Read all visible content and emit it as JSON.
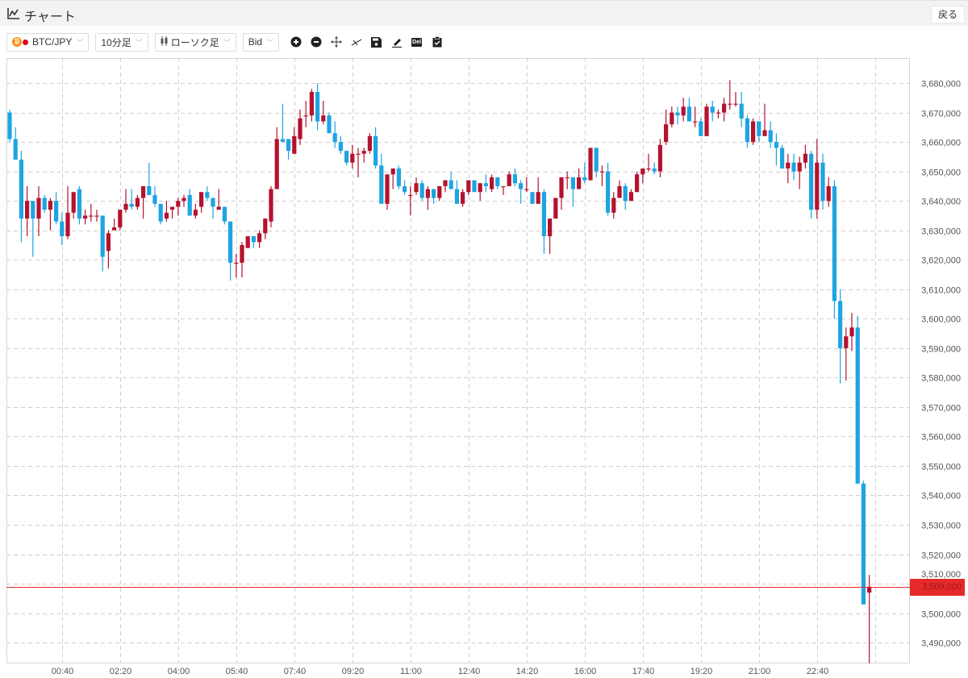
{
  "header": {
    "title": "チャート",
    "back_label": "戻る",
    "icon": "line-chart-icon"
  },
  "toolbar": {
    "pair": {
      "label": "BTC/JPY",
      "icons": [
        "bitcoin-icon",
        "jpy-flag-icon"
      ]
    },
    "interval": "10分足",
    "chart_type": "ローソク足",
    "price_side": "Bid",
    "tools": [
      "zoom-in-icon",
      "zoom-out-icon",
      "move-icon",
      "trendline-icon",
      "save-icon",
      "draw-icon",
      "delete-icon",
      "clipboard-icon"
    ],
    "delete_label": "Del"
  },
  "colors": {
    "up": "#b5122e",
    "down": "#1ea4e2",
    "current_price": "#e52a2a",
    "grid": "#cfcfcf"
  },
  "chart_data": {
    "type": "candlestick",
    "fields": [
      "open",
      "high",
      "low",
      "close"
    ],
    "ylim": [
      3483200,
      3688500
    ],
    "grid": true,
    "current_price": 3509000,
    "current_price_label": "3,509,000",
    "x_tick_labels": [
      "00:40",
      "02:20",
      "04:00",
      "05:40",
      "07:40",
      "09:20",
      "11:00",
      "12:40",
      "14:20",
      "16:00",
      "17:40",
      "19:20",
      "21:00",
      "22:40"
    ],
    "y_tick_labels": [
      "3,680,000",
      "3,670,000",
      "3,660,000",
      "3,650,000",
      "3,640,000",
      "3,630,000",
      "3,620,000",
      "3,610,000",
      "3,600,000",
      "3,590,000",
      "3,580,000",
      "3,570,000",
      "3,560,000",
      "3,550,000",
      "3,540,000",
      "3,530,000",
      "3,520,000",
      "3,510,000",
      "3,500,000",
      "3,490,000"
    ],
    "y_tick_values": [
      3680000,
      3670000,
      3660000,
      3650000,
      3640000,
      3630000,
      3620000,
      3610000,
      3600000,
      3590000,
      3580000,
      3570000,
      3560000,
      3550000,
      3540000,
      3530000,
      3520000,
      3510000,
      3500000,
      3490000
    ],
    "candles": [
      [
        3670000,
        3671000,
        3660000,
        3661000
      ],
      [
        3661000,
        3665000,
        3654000,
        3654000
      ],
      [
        3654000,
        3657000,
        3626000,
        3634000
      ],
      [
        3634000,
        3645000,
        3628000,
        3640000
      ],
      [
        3640000,
        3640000,
        3621000,
        3634000
      ],
      [
        3634000,
        3645000,
        3628000,
        3641000
      ],
      [
        3641000,
        3642000,
        3636000,
        3637000
      ],
      [
        3637000,
        3641000,
        3630000,
        3640000
      ],
      [
        3640000,
        3643000,
        3632000,
        3633000
      ],
      [
        3633000,
        3636000,
        3625000,
        3628000
      ],
      [
        3628000,
        3645000,
        3627000,
        3636000
      ],
      [
        3636000,
        3643000,
        3634000,
        3643000
      ],
      [
        3644000,
        3645000,
        3632000,
        3634000
      ],
      [
        3634000,
        3637000,
        3632000,
        3635000
      ],
      [
        3635000,
        3639000,
        3633000,
        3635000
      ],
      [
        3635000,
        3637000,
        3633000,
        3635000
      ],
      [
        3635000,
        3635000,
        3616000,
        3621000
      ],
      [
        3623000,
        3630000,
        3617000,
        3629000
      ],
      [
        3630000,
        3634000,
        3630000,
        3631000
      ],
      [
        3631000,
        3637000,
        3630000,
        3637000
      ],
      [
        3637000,
        3644000,
        3636000,
        3639000
      ],
      [
        3639000,
        3644000,
        3637000,
        3638000
      ],
      [
        3638000,
        3642000,
        3637000,
        3641000
      ],
      [
        3641000,
        3645000,
        3634000,
        3645000
      ],
      [
        3645000,
        3653000,
        3642000,
        3642000
      ],
      [
        3642000,
        3645000,
        3638000,
        3639000
      ],
      [
        3639000,
        3639000,
        3632000,
        3633000
      ],
      [
        3634000,
        3640000,
        3633000,
        3636000
      ],
      [
        3637000,
        3638000,
        3634000,
        3638000
      ],
      [
        3638000,
        3641000,
        3635000,
        3640000
      ],
      [
        3640000,
        3642000,
        3638000,
        3641000
      ],
      [
        3642000,
        3644000,
        3635000,
        3635000
      ],
      [
        3635000,
        3639000,
        3634000,
        3637000
      ],
      [
        3638000,
        3643000,
        3636000,
        3643000
      ],
      [
        3643000,
        3645000,
        3640000,
        3641000
      ],
      [
        3641000,
        3641000,
        3634000,
        3638000
      ],
      [
        3637000,
        3644000,
        3637000,
        3638000
      ],
      [
        3638000,
        3638000,
        3632000,
        3633000
      ],
      [
        3633000,
        3633000,
        3613000,
        3619000
      ],
      [
        3619000,
        3622000,
        3614000,
        3619000
      ],
      [
        3619000,
        3626000,
        3614000,
        3625000
      ],
      [
        3624000,
        3628000,
        3624000,
        3628000
      ],
      [
        3628000,
        3628000,
        3624000,
        3626000
      ],
      [
        3626000,
        3630000,
        3624000,
        3629000
      ],
      [
        3629000,
        3634000,
        3627000,
        3634000
      ],
      [
        3633000,
        3645000,
        3631000,
        3644000
      ],
      [
        3644000,
        3665000,
        3644000,
        3661000
      ],
      [
        3661000,
        3673000,
        3660000,
        3660000
      ],
      [
        3661000,
        3661000,
        3654000,
        3657000
      ],
      [
        3656000,
        3665000,
        3656000,
        3662000
      ],
      [
        3661000,
        3671000,
        3659000,
        3668000
      ],
      [
        3669000,
        3674000,
        3665000,
        3669000
      ],
      [
        3669000,
        3678000,
        3667000,
        3677000
      ],
      [
        3677000,
        3680000,
        3664000,
        3667000
      ],
      [
        3667000,
        3674000,
        3666000,
        3669000
      ],
      [
        3669000,
        3670000,
        3663000,
        3663000
      ],
      [
        3663000,
        3667000,
        3658000,
        3660000
      ],
      [
        3660000,
        3662000,
        3656000,
        3657000
      ],
      [
        3657000,
        3657000,
        3652000,
        3653000
      ],
      [
        3653000,
        3659000,
        3651000,
        3656000
      ],
      [
        3656000,
        3658000,
        3648000,
        3656000
      ],
      [
        3656000,
        3658000,
        3653000,
        3657000
      ],
      [
        3657000,
        3663000,
        3656000,
        3662000
      ],
      [
        3662000,
        3665000,
        3651000,
        3652000
      ],
      [
        3652000,
        3656000,
        3639000,
        3639000
      ],
      [
        3639000,
        3649000,
        3637000,
        3649000
      ],
      [
        3649000,
        3651000,
        3644000,
        3651000
      ],
      [
        3651000,
        3652000,
        3644000,
        3645000
      ],
      [
        3645000,
        3647000,
        3642000,
        3643000
      ],
      [
        3642000,
        3645000,
        3635000,
        3642000
      ],
      [
        3643000,
        3648000,
        3642000,
        3646000
      ],
      [
        3646000,
        3647000,
        3640000,
        3641000
      ],
      [
        3641000,
        3645000,
        3637000,
        3644000
      ],
      [
        3644000,
        3644000,
        3639000,
        3641000
      ],
      [
        3641000,
        3645000,
        3640000,
        3645000
      ],
      [
        3645000,
        3647000,
        3643000,
        3647000
      ],
      [
        3647000,
        3650000,
        3644000,
        3644000
      ],
      [
        3644000,
        3647000,
        3639000,
        3639000
      ],
      [
        3639000,
        3644000,
        3638000,
        3643000
      ],
      [
        3643000,
        3647000,
        3642000,
        3647000
      ],
      [
        3647000,
        3647000,
        3643000,
        3643000
      ],
      [
        3643000,
        3646000,
        3640000,
        3646000
      ],
      [
        3646000,
        3649000,
        3643000,
        3645000
      ],
      [
        3644000,
        3649000,
        3643000,
        3648000
      ],
      [
        3648000,
        3648000,
        3644000,
        3645000
      ],
      [
        3645000,
        3645000,
        3642000,
        3645000
      ],
      [
        3645000,
        3650000,
        3645000,
        3649000
      ],
      [
        3649000,
        3651000,
        3645000,
        3646000
      ],
      [
        3646000,
        3647000,
        3639000,
        3644000
      ],
      [
        3644000,
        3648000,
        3643000,
        3644000
      ],
      [
        3643000,
        3643000,
        3639000,
        3639000
      ],
      [
        3639000,
        3648000,
        3639000,
        3643000
      ],
      [
        3643000,
        3644000,
        3622000,
        3628000
      ],
      [
        3628000,
        3634000,
        3622000,
        3634000
      ],
      [
        3634000,
        3641000,
        3634000,
        3641000
      ],
      [
        3641000,
        3648000,
        3637000,
        3648000
      ],
      [
        3648000,
        3650000,
        3644000,
        3648000
      ],
      [
        3648000,
        3648000,
        3638000,
        3644000
      ],
      [
        3644000,
        3651000,
        3644000,
        3648000
      ],
      [
        3648000,
        3653000,
        3646000,
        3647000
      ],
      [
        3647000,
        3658000,
        3647000,
        3658000
      ],
      [
        3658000,
        3658000,
        3648000,
        3650000
      ],
      [
        3650000,
        3652000,
        3645000,
        3650000
      ],
      [
        3650000,
        3653000,
        3635000,
        3636000
      ],
      [
        3636000,
        3643000,
        3634000,
        3641000
      ],
      [
        3641000,
        3647000,
        3641000,
        3645000
      ],
      [
        3645000,
        3646000,
        3637000,
        3640000
      ],
      [
        3640000,
        3644000,
        3640000,
        3643000
      ],
      [
        3643000,
        3650000,
        3643000,
        3649000
      ],
      [
        3649000,
        3651000,
        3646000,
        3651000
      ],
      [
        3651000,
        3656000,
        3650000,
        3651000
      ],
      [
        3651000,
        3653000,
        3649000,
        3650000
      ],
      [
        3650000,
        3661000,
        3648000,
        3659000
      ],
      [
        3660000,
        3671000,
        3659000,
        3666000
      ],
      [
        3666000,
        3672000,
        3665000,
        3670000
      ],
      [
        3670000,
        3672000,
        3666000,
        3669000
      ],
      [
        3669000,
        3675000,
        3667000,
        3672000
      ],
      [
        3672000,
        3675000,
        3667000,
        3667000
      ],
      [
        3667000,
        3672000,
        3665000,
        3667000
      ],
      [
        3667000,
        3668000,
        3662000,
        3662000
      ],
      [
        3662000,
        3673000,
        3662000,
        3672000
      ],
      [
        3672000,
        3674000,
        3667000,
        3670000
      ],
      [
        3670000,
        3671000,
        3668000,
        3670000
      ],
      [
        3670000,
        3675000,
        3667000,
        3673000
      ],
      [
        3673000,
        3681000,
        3671000,
        3673000
      ],
      [
        3673000,
        3677000,
        3672000,
        3673000
      ],
      [
        3673000,
        3677000,
        3665000,
        3668000
      ],
      [
        3668000,
        3669000,
        3658000,
        3660000
      ],
      [
        3660000,
        3668000,
        3659000,
        3667000
      ],
      [
        3667000,
        3667000,
        3660000,
        3662000
      ],
      [
        3662000,
        3673000,
        3662000,
        3664000
      ],
      [
        3664000,
        3667000,
        3658000,
        3660000
      ],
      [
        3660000,
        3663000,
        3652000,
        3658000
      ],
      [
        3658000,
        3659000,
        3651000,
        3651000
      ],
      [
        3651000,
        3656000,
        3646000,
        3653000
      ],
      [
        3653000,
        3656000,
        3647000,
        3650000
      ],
      [
        3650000,
        3655000,
        3644000,
        3653000
      ],
      [
        3653000,
        3659000,
        3651000,
        3656000
      ],
      [
        3656000,
        3657000,
        3634000,
        3637000
      ],
      [
        3637000,
        3661000,
        3634000,
        3653000
      ],
      [
        3653000,
        3656000,
        3637000,
        3640000
      ],
      [
        3640000,
        3648000,
        3638000,
        3645000
      ],
      [
        3645000,
        3647000,
        3600000,
        3606000
      ],
      [
        3606000,
        3610000,
        3578000,
        3590000
      ],
      [
        3590000,
        3597000,
        3579000,
        3594000
      ],
      [
        3594000,
        3602000,
        3589000,
        3597000
      ],
      [
        3597000,
        3601000,
        3544000,
        3544000
      ],
      [
        3544000,
        3545000,
        3503000,
        3503000
      ],
      [
        3507000,
        3513000,
        3483000,
        3509000
      ]
    ]
  }
}
